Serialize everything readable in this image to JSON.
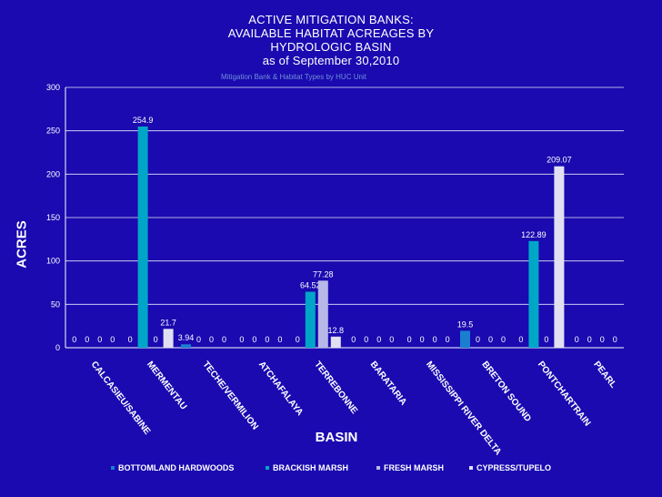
{
  "chart_data": {
    "type": "bar",
    "title_lines": [
      "ACTIVE MITIGATION BANKS:",
      "AVAILABLE HABITAT ACREAGES BY",
      "HYDROLOGIC BASIN",
      "as of September 30,2010"
    ],
    "subtitle": "Mitigation Bank & Habitat Types by HUC Unit",
    "xlabel": "BASIN",
    "ylabel": "ACRES",
    "ylim": [
      0,
      300
    ],
    "yticks": [
      "0",
      "50",
      "100",
      "150",
      "200",
      "250",
      "300"
    ],
    "grid": true,
    "legend_position": "bottom",
    "categories": [
      "CALCASIEU/SABINE",
      "MERMENTAU",
      "TECHE/VERMILION",
      "ATCHAFALAYA",
      "TERREBONNE",
      "BARATARIA",
      "MISSISSIPPI RIVER DELTA",
      "BRETON SOUND",
      "PONTCHARTRAIN",
      "PEARL"
    ],
    "series": [
      {
        "name": "BOTTOMLAND HARDWOODS",
        "color": "#1a7fd0",
        "values": [
          0,
          0,
          3.94,
          0,
          0,
          0,
          0,
          19.5,
          0,
          0
        ],
        "labels": [
          "0",
          "0",
          "3.94",
          "0",
          "0",
          "0",
          "0",
          "19.5",
          "0",
          "0"
        ]
      },
      {
        "name": "BRACKISH MARSH",
        "color": "#00a6c7",
        "values": [
          0,
          254.9,
          0,
          0,
          64.52,
          0,
          0,
          0,
          122.89,
          0
        ],
        "labels": [
          "0",
          "254.9",
          "0",
          "0",
          "64.52",
          "0",
          "0",
          "0",
          "122.89",
          "0"
        ]
      },
      {
        "name": "FRESH MARSH",
        "color": "#b8b8e8",
        "values": [
          0,
          0,
          0,
          0,
          77.28,
          0,
          0,
          0,
          0,
          0
        ],
        "labels": [
          "0",
          "0",
          "0",
          "0",
          "77.28",
          "0",
          "0",
          "0",
          "0",
          "0"
        ]
      },
      {
        "name": "CYPRESS/TUPELO",
        "color": "#e0e0f2",
        "values": [
          0,
          21.7,
          0,
          0,
          12.8,
          0,
          0,
          0,
          209.07,
          0
        ],
        "labels": [
          "0",
          "21.7",
          "0",
          "0",
          "12.8",
          "0",
          "0",
          "0",
          "209.07",
          "0"
        ]
      }
    ],
    "bar_colors": {
      "BRETON SOUND": {
        "BRACKISH MARSH": "#1fd6a8"
      }
    }
  }
}
